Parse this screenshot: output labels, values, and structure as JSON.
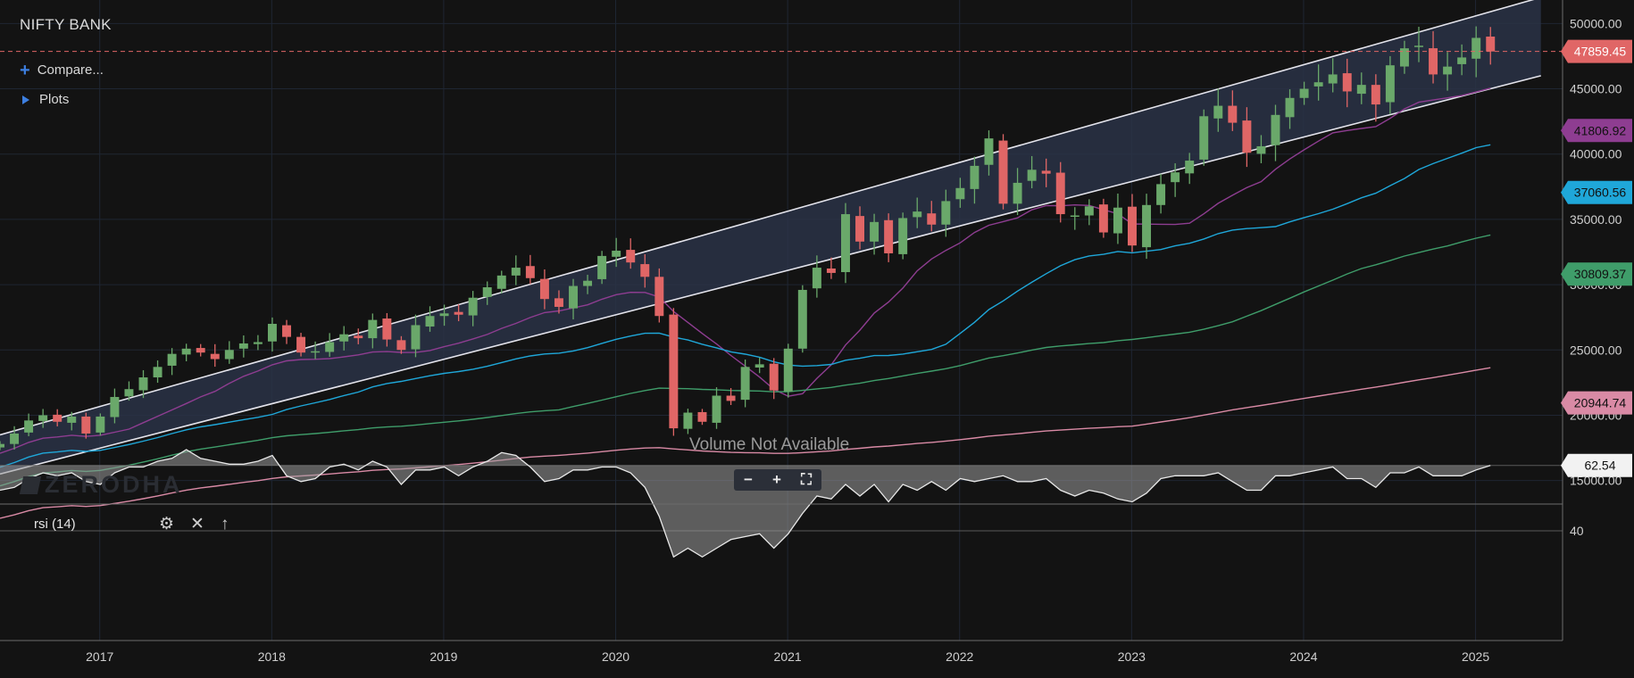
{
  "header": {
    "symbol": "NIFTY BANK",
    "compare_label": "Compare...",
    "plots_label": "Plots"
  },
  "watermark": "ZERODHA",
  "volume_note": "Volume Not Available",
  "zoom_controls": {
    "zoom_out": "−",
    "zoom_in": "+",
    "fit": "⛶"
  },
  "rsi_panel": {
    "label": "rsi (14)",
    "value": "62.54",
    "level_label": "40"
  },
  "colors": {
    "background": "#131313",
    "bull": "#6aa86a",
    "bear": "#e06666",
    "channel_fill": "#2a3347",
    "channel_line": "#e4e4ec",
    "last_price": "#e06666",
    "ma_purple": "#8e3d91",
    "ma_blue": "#1fa7d9",
    "ma_green": "#3f9d6a",
    "ma_pink": "#d98aa5"
  },
  "chart_data": {
    "type": "candlestick",
    "title": "NIFTY BANK",
    "timeframe": "monthly",
    "y_ticks": [
      "15000.00",
      "20000.00",
      "25000.00",
      "30000.00",
      "35000.00",
      "40000.00",
      "45000.00",
      "50000.00"
    ],
    "x_ticks": [
      "2017",
      "2018",
      "2019",
      "2020",
      "2021",
      "2022",
      "2023",
      "2024",
      "2025"
    ],
    "ylim": [
      13200,
      51800
    ],
    "xlim": [
      2016.42,
      2025.48
    ],
    "last_price": "47859.45",
    "price_tags": [
      {
        "label": "47859.45",
        "value": 47859.45,
        "color": "#e06666"
      },
      {
        "label": "41806.92",
        "value": 41806.92,
        "color": "#8e3d91"
      },
      {
        "label": "37060.56",
        "value": 37060.56,
        "color": "#1fa7d9"
      },
      {
        "label": "30809.37",
        "value": 30809.37,
        "color": "#3f9d6a"
      },
      {
        "label": "20944.74",
        "value": 20944.74,
        "color": "#d98aa5"
      }
    ],
    "channel": {
      "upper": [
        [
          2016.42,
          18500
        ],
        [
          2025.38,
          52000
        ]
      ],
      "lower": [
        [
          2016.42,
          15500
        ],
        [
          2025.38,
          46000
        ]
      ]
    },
    "close": [
      17800,
      18600,
      19600,
      20000,
      19500,
      19900,
      18600,
      19900,
      21400,
      22000,
      22900,
      23700,
      24700,
      25100,
      24800,
      24300,
      25000,
      25500,
      25600,
      27000,
      26000,
      24800,
      24900,
      25600,
      26200,
      25900,
      27300,
      25800,
      25000,
      26900,
      27600,
      27800,
      27700,
      29000,
      29800,
      30700,
      31300,
      30500,
      28900,
      28300,
      29900,
      30300,
      32200,
      32600,
      31700,
      30600,
      27600,
      19000,
      20200,
      19500,
      21500,
      21100,
      23700,
      23900,
      21900,
      25100,
      29600,
      31300,
      30900,
      35400,
      33300,
      34800,
      32400,
      35100,
      35600,
      34600,
      36400,
      37400,
      39100,
      41200,
      36200,
      37800,
      38800,
      38500,
      35400,
      35300,
      36000,
      34000,
      35900,
      33000,
      36100,
      37700,
      38600,
      39500,
      42900,
      43700,
      42400,
      40100,
      40600,
      43000,
      44300,
      45000,
      45500,
      46100,
      44800,
      45300,
      43800,
      46800,
      48100,
      48300,
      46100,
      46700,
      47400,
      48900,
      47859
    ]
  },
  "rsi_data": {
    "ylim": [
      0,
      100
    ],
    "level": 40,
    "values": [
      54,
      55,
      58,
      60,
      59,
      60,
      57,
      56,
      60,
      62,
      62,
      64,
      65,
      68,
      65,
      64,
      63,
      63,
      64,
      66,
      59,
      57,
      58,
      62,
      63,
      61,
      64,
      62,
      56,
      61,
      61,
      62,
      59,
      62,
      64,
      67,
      66,
      62,
      57,
      58,
      61,
      61,
      62,
      62,
      60,
      55,
      45,
      31,
      34,
      31,
      34,
      37,
      38,
      39,
      34,
      39,
      46,
      52,
      51,
      56,
      52,
      56,
      50,
      56,
      54,
      57,
      54,
      58,
      57,
      58,
      59,
      57,
      57,
      58,
      54,
      52,
      54,
      53,
      51,
      50,
      53,
      58,
      59,
      59,
      59,
      60,
      57,
      54,
      54,
      59,
      59,
      60,
      61,
      62,
      58,
      58,
      55,
      60,
      60,
      62,
      59,
      59,
      59,
      61,
      62.54
    ]
  }
}
